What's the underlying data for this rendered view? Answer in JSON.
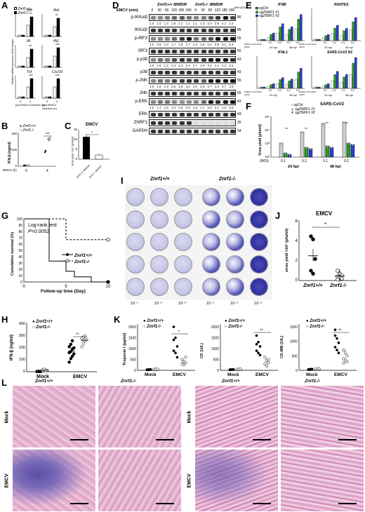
{
  "panels": {
    "A": {
      "letter": "A",
      "legend": [
        "Znrf1+/+",
        "Znrf1-/-"
      ],
      "genes": [
        "Ifnb",
        "Ifnb",
        "Il6",
        "Ifit1",
        "Tnf",
        "Cxcl10"
      ],
      "ylabel": "Relative mRNA expression (Fold change)",
      "xlabel": "post EMCV infection (h)",
      "x_ticks": [
        "0",
        "4"
      ],
      "sig": "***"
    },
    "B": {
      "letter": "B",
      "legend": [
        "Znrf1+/+",
        "Znrf1-/-"
      ],
      "ylabel": "IFN-β (ng/ml)",
      "xlabel": "EMCV (h)",
      "x_ticks": [
        "0",
        "4"
      ],
      "y_ticks": [
        "0",
        "100",
        "200"
      ],
      "sig": "***"
    },
    "C": {
      "letter": "C",
      "title": "EMCV",
      "ylabel": "virus yield ×10⁵ (pfu/ml)",
      "categories": [
        "Znrf1+/+ iBMDM",
        "Znrf1-/- iBMDM"
      ],
      "y_ticks": [
        "0",
        "5",
        "10",
        "15"
      ],
      "sig": "*"
    },
    "D": {
      "letter": "D",
      "group1": "Znrf1+/+ iBMDM",
      "group2": "Znrf1-/- iBMDM",
      "time_label": "EMCV (min)",
      "mw_label": "MW (kDa)",
      "times": [
        "0",
        "30",
        "60",
        "120",
        "180",
        "240",
        "0",
        "30",
        "60",
        "120",
        "180",
        "240"
      ],
      "rows": [
        {
          "label": "p-IKKα/β",
          "mw": "85",
          "quant": [
            "1.0",
            "1.0",
            "1.3",
            "1.8",
            "2.1",
            "1.4",
            "1.1",
            "1.3",
            "2.0",
            "2.9",
            "4.1",
            "2.4"
          ]
        },
        {
          "label": "IKKα/β",
          "mw": "85",
          "quant": []
        },
        {
          "label": "p-IRF3",
          "mw": "55",
          "quant": [
            "1.0",
            "0.9",
            "1.0",
            "1.7",
            "2.8",
            "3.7",
            "1.4",
            "1.8",
            "2.2",
            "3.9",
            "5.1",
            "5.3"
          ]
        },
        {
          "label": "IRF3",
          "mw": "55",
          "quant": []
        },
        {
          "label": "p-p38",
          "mw": "43",
          "quant": [
            "1.0",
            "1.6",
            "1.3",
            "2.4",
            "3.1",
            "2.4",
            "2.7",
            "3.0",
            "4.1",
            "4.1",
            "4.3",
            "3.2"
          ]
        },
        {
          "label": "p38",
          "mw": "43",
          "quant": []
        },
        {
          "label": "p-JNK",
          "mw": "55",
          "quant": [
            "1.0",
            "1.5",
            "1.3",
            "2.6",
            "2.8",
            "3.0",
            "2.9",
            "2.0",
            "4.7",
            "4.3",
            "4.7",
            "3.8"
          ]
        },
        {
          "label": "JNK",
          "mw": "55",
          "quant": []
        },
        {
          "label": "p-ERK",
          "mw": "43",
          "quant": [
            "1.0",
            "1.3",
            "1.5",
            "1.0",
            "0.8",
            "0.8",
            "1.0",
            "1.7",
            "3.8",
            "3.1",
            "4.6",
            "5.5"
          ]
        },
        {
          "label": "ERK",
          "mw": "43",
          "quant": []
        },
        {
          "label": "ZNRF1",
          "mw": "26",
          "quant": []
        },
        {
          "label": "GAPDH",
          "mw": "34",
          "quant": []
        }
      ]
    },
    "E": {
      "letter": "E",
      "legend": [
        "sgCtrl",
        "sgZNRF1 #1",
        "sgZNRF1 #2"
      ],
      "charts": [
        "IFNB",
        "RANTES",
        "IFNL1",
        "SARS-CoV2 N1"
      ],
      "x_groups": [
        "24 hpi",
        "48 hpi"
      ],
      "x_ticks": [
        "0.1",
        "0.2",
        "0.1",
        "0.2"
      ],
      "xlabel_prefix": "SARS-CoV2 Mock (MOI)",
      "ylabel": "Relative mRNA expression (Fold change)"
    },
    "F": {
      "letter": "F",
      "title": "SARS-CoV2",
      "legend": [
        "sgCtrl",
        "sgZNRF1 #1",
        "sgZNRF1 #2"
      ],
      "ylabel": "Virus yield (pfu/ml)",
      "x_ticks": [
        "0.1",
        "0.2",
        "0.1",
        "0.2"
      ],
      "x_groups": [
        "24 hpi",
        "48 hpi"
      ],
      "moi_label": "(MOI)",
      "y_ticks": [
        "10²",
        "10³",
        "10⁴",
        "10⁵"
      ],
      "sig": "**"
    },
    "G": {
      "letter": "G",
      "annot1": "Log-rank test",
      "annot2": "P=0.0052",
      "ylabel": "Cumulative survival (%)",
      "xlabel": "Follow-up time (Day)",
      "x_ticks": [
        "0",
        "5",
        "10"
      ],
      "y_ticks": [
        "0",
        "10",
        "20",
        "30",
        "40",
        "50",
        "60",
        "70",
        "80",
        "90",
        "100"
      ],
      "legend": [
        "Znrf1+/+",
        "Znrf1-/-"
      ]
    },
    "H": {
      "letter": "H",
      "legend": [
        "Znrf1+/+",
        "Znrf1-/-"
      ],
      "ylabel": "IFN-β (ng/ml)",
      "categories": [
        "Mock",
        "EMCV"
      ],
      "y_ticks": [
        "0",
        "100",
        "200",
        "300",
        "400"
      ],
      "sig": "**"
    },
    "I": {
      "letter": "I",
      "col_labels": [
        "Znrf1+/+",
        "Znrf1-/-"
      ],
      "dilutions": [
        "10⁻¹",
        "10⁻²",
        "10⁻³",
        "10⁻¹",
        "10⁻²",
        "10⁻³"
      ]
    },
    "J": {
      "letter": "J",
      "title": "EMCV",
      "ylabel": "virus yield ×10⁵ (pfu/ml)",
      "categories": [
        "Znrf1+/+",
        "Znrf1-/-"
      ],
      "y_ticks": [
        "0",
        "2",
        "4",
        "6"
      ],
      "sig": "*"
    },
    "K": {
      "letter": "K",
      "charts": [
        {
          "ylabel": "Troponin I (pg/ml)",
          "y_ticks": [
            "0",
            "500",
            "1000",
            "1500",
            "2000"
          ],
          "sig": "*"
        },
        {
          "ylabel": "CK (U/L)",
          "y_ticks": [
            "0",
            "500",
            "1000",
            "1500",
            "2000"
          ],
          "sig": "**"
        },
        {
          "ylabel": "CK-MB (U/L)",
          "y_ticks": [
            "0",
            "500",
            "1000",
            "1500"
          ],
          "sig": "**"
        }
      ],
      "categories": [
        "Mock",
        "EMCV"
      ],
      "legend": [
        "Znrf1+/+",
        "Znrf1-/-"
      ]
    },
    "L": {
      "letter": "L",
      "col_labels": [
        "Znrf1+/+",
        "Znrf1-/-",
        "Znrf1+/+",
        "Znrf1-/-"
      ],
      "row_labels": [
        "Mock",
        "EMCV"
      ]
    }
  },
  "chart_data": [
    {
      "type": "line",
      "title": "G",
      "xlabel": "Follow-up time (Day)",
      "ylabel": "Cumulative survival (%)",
      "xlim": [
        0,
        10
      ],
      "ylim": [
        0,
        100
      ],
      "series": [
        {
          "name": "Znrf1+/+",
          "x": [
            0,
            3,
            3,
            5,
            5,
            6,
            6,
            8,
            8,
            10
          ],
          "y": [
            100,
            100,
            33,
            33,
            17,
            17,
            8,
            8,
            0,
            0
          ]
        },
        {
          "name": "Znrf1-/-",
          "x": [
            0,
            5,
            5,
            10
          ],
          "y": [
            100,
            100,
            67,
            67
          ]
        }
      ]
    },
    {
      "type": "scatter",
      "title": "H",
      "ylabel": "IFN-β (ng/ml)",
      "categories": [
        "Mock",
        "EMCV"
      ],
      "ylim": [
        0,
        400
      ],
      "series": [
        {
          "name": "Znrf1+/+",
          "values": [
            [
              2,
              3,
              1,
              4,
              2,
              3,
              2
            ],
            [
              80,
              110,
              130,
              150,
              160,
              170,
              190,
              200,
              210,
              230,
              260
            ]
          ]
        },
        {
          "name": "Znrf1-/-",
          "values": [
            [
              5,
              8,
              10,
              12,
              15,
              20,
              10
            ],
            [
              210,
              240,
              260,
              270,
              280,
              290,
              300
            ]
          ]
        }
      ]
    },
    {
      "type": "scatter",
      "title": "J",
      "ylabel": "virus yield ×10⁵ (pfu/ml)",
      "categories": [
        "Znrf1+/+",
        "Znrf1-/-"
      ],
      "ylim": [
        0,
        6
      ],
      "series": [
        {
          "name": "Znrf1+/+",
          "values": [
            4.5,
            4.2,
            2.2,
            1.0,
            0.7
          ]
        },
        {
          "name": "Znrf1-/-",
          "values": [
            1.0,
            0.7,
            0.5,
            0.4,
            0.3,
            0.2,
            0.1
          ]
        }
      ]
    }
  ]
}
